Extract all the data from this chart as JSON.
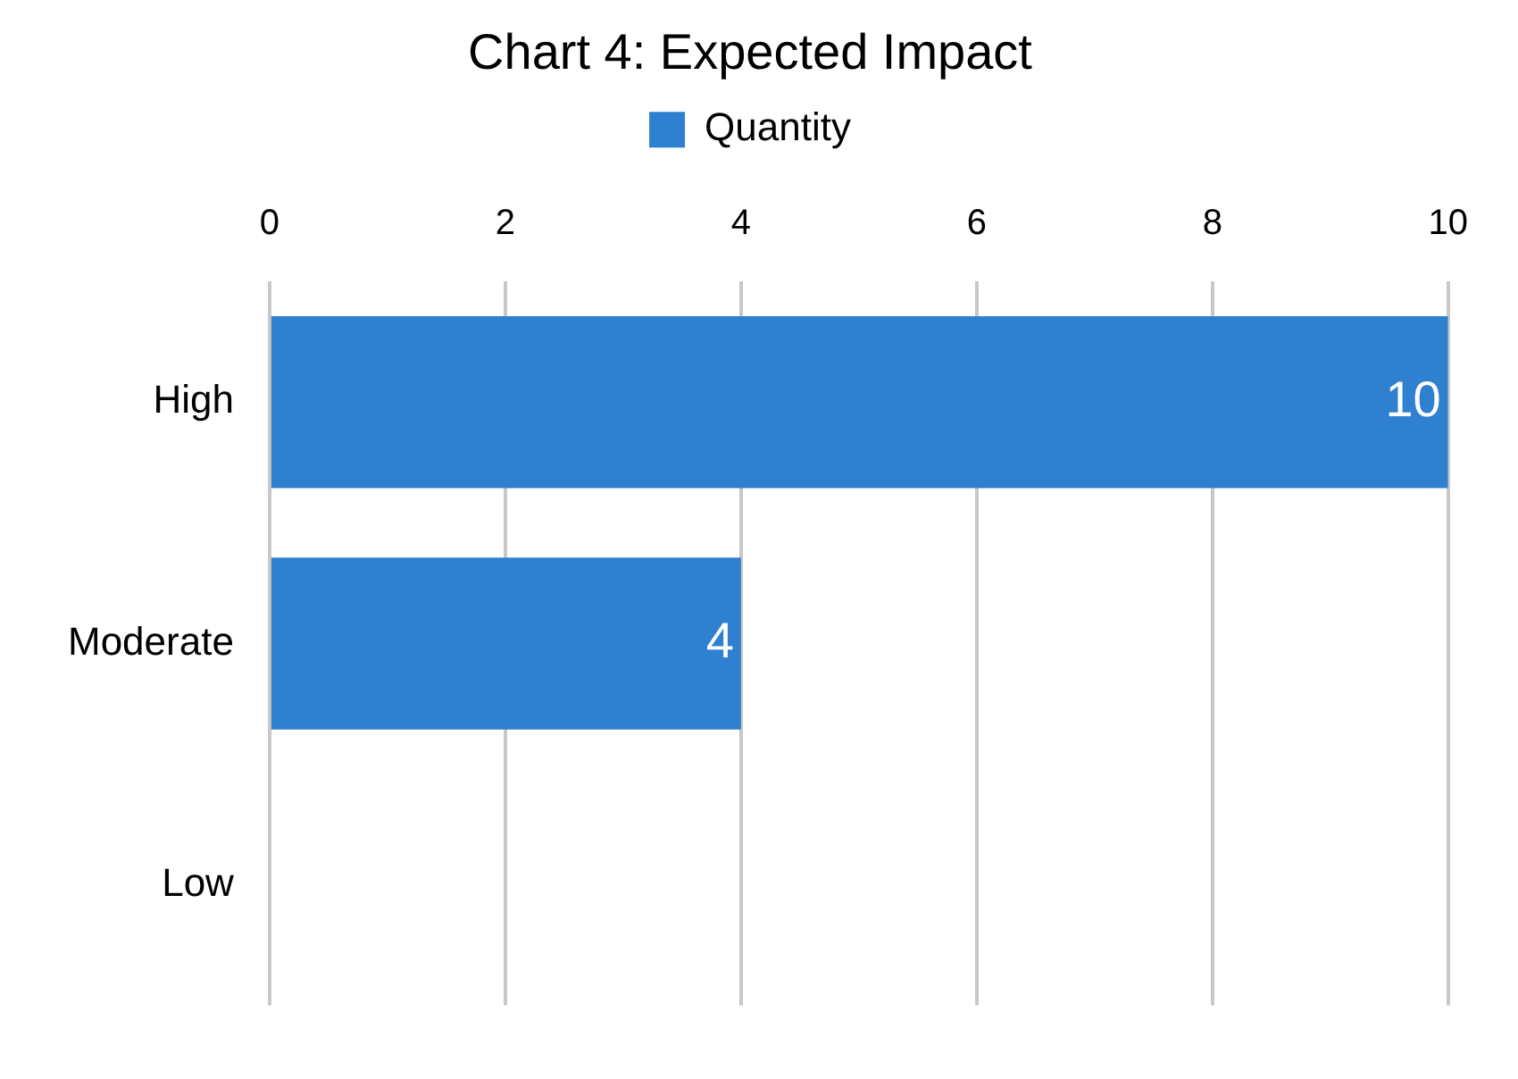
{
  "chart_data": {
    "type": "bar",
    "orientation": "horizontal",
    "title": "Chart 4: Expected Impact",
    "categories": [
      "High",
      "Moderate",
      "Low"
    ],
    "series": [
      {
        "name": "Quantity",
        "color": "#2f80d0",
        "values": [
          10,
          4,
          0
        ],
        "value_labels": [
          "10",
          "4",
          null
        ]
      }
    ],
    "xlim": [
      0,
      10
    ],
    "xticks": [
      0,
      2,
      4,
      6,
      8,
      10
    ],
    "grid": "x",
    "legend": "top"
  }
}
